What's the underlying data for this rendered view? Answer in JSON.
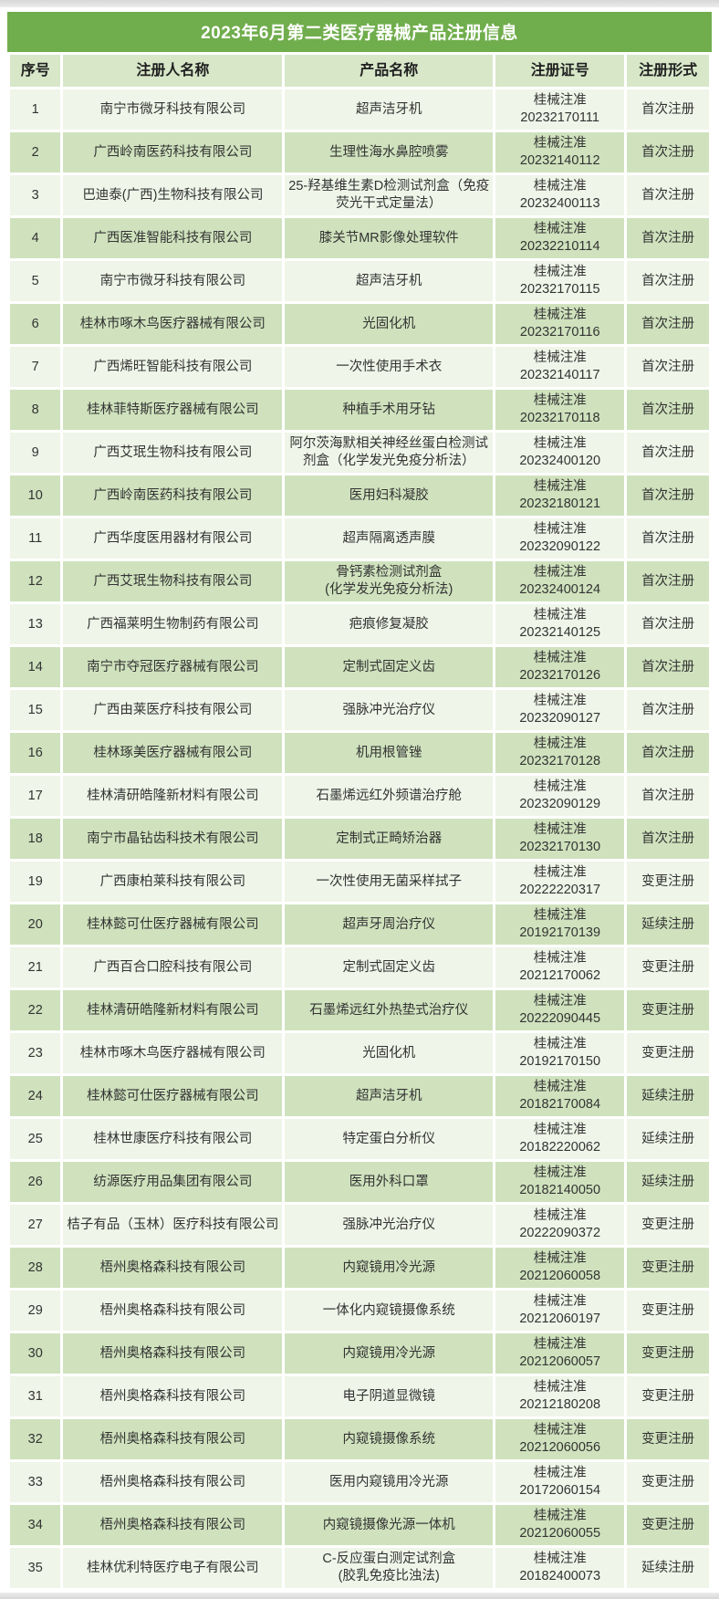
{
  "page": {
    "title": "2023年6月第二类医疗器械产品注册信息"
  },
  "colors": {
    "title_bg": "#70ad4c",
    "header_bg": "#d7e7c8",
    "row_odd_bg": "#eff5e8",
    "row_even_bg": "#cfe2bd",
    "title_text": "#ffffff"
  },
  "table": {
    "headers": [
      "序号",
      "注册人名称",
      "产品名称",
      "注册证号",
      "注册形式"
    ],
    "rows": [
      {
        "no": "1",
        "registrant": "南宁市微牙科技有限公司",
        "product": "超声洁牙机",
        "cert_prefix": "桂械注准",
        "cert_no": "20232170111",
        "form": "首次注册"
      },
      {
        "no": "2",
        "registrant": "广西岭南医药科技有限公司",
        "product": "生理性海水鼻腔喷雾",
        "cert_prefix": "桂械注准",
        "cert_no": "20232140112",
        "form": "首次注册"
      },
      {
        "no": "3",
        "registrant": "巴迪泰(广西)生物科技有限公司",
        "product": "25-羟基维生素D检测试剂盒（免疫荧光干式定量法）",
        "cert_prefix": "桂械注准",
        "cert_no": "20232400113",
        "form": "首次注册"
      },
      {
        "no": "4",
        "registrant": "广西医准智能科技有限公司",
        "product": "膝关节MR影像处理软件",
        "cert_prefix": "桂械注准",
        "cert_no": "20232210114",
        "form": "首次注册"
      },
      {
        "no": "5",
        "registrant": "南宁市微牙科技有限公司",
        "product": "超声洁牙机",
        "cert_prefix": "桂械注准",
        "cert_no": "20232170115",
        "form": "首次注册"
      },
      {
        "no": "6",
        "registrant": "桂林市啄木鸟医疗器械有限公司",
        "product": "光固化机",
        "cert_prefix": "桂械注准",
        "cert_no": "20232170116",
        "form": "首次注册"
      },
      {
        "no": "7",
        "registrant": "广西烯旺智能科技有限公司",
        "product": "一次性使用手术衣",
        "cert_prefix": "桂械注准",
        "cert_no": "20232140117",
        "form": "首次注册"
      },
      {
        "no": "8",
        "registrant": "桂林菲特斯医疗器械有限公司",
        "product": "种植手术用牙钻",
        "cert_prefix": "桂械注准",
        "cert_no": "20232170118",
        "form": "首次注册"
      },
      {
        "no": "9",
        "registrant": "广西艾珉生物科技有限公司",
        "product": "阿尔茨海默相关神经丝蛋白检测试剂盒（化学发光免疫分析法）",
        "cert_prefix": "桂械注准",
        "cert_no": "20232400120",
        "form": "首次注册"
      },
      {
        "no": "10",
        "registrant": "广西岭南医药科技有限公司",
        "product": "医用妇科凝胶",
        "cert_prefix": "桂械注准",
        "cert_no": "20232180121",
        "form": "首次注册"
      },
      {
        "no": "11",
        "registrant": "广西华度医用器材有限公司",
        "product": "超声隔离透声膜",
        "cert_prefix": "桂械注准",
        "cert_no": "20232090122",
        "form": "首次注册"
      },
      {
        "no": "12",
        "registrant": "广西艾珉生物科技有限公司",
        "product": "骨钙素检测试剂盒\n(化学发光免疫分析法)",
        "cert_prefix": "桂械注准",
        "cert_no": "20232400124",
        "form": "首次注册"
      },
      {
        "no": "13",
        "registrant": "广西福莱明生物制药有限公司",
        "product": "疤痕修复凝胶",
        "cert_prefix": "桂械注准",
        "cert_no": "20232140125",
        "form": "首次注册"
      },
      {
        "no": "14",
        "registrant": "南宁市夺冠医疗器械有限公司",
        "product": "定制式固定义齿",
        "cert_prefix": "桂械注准",
        "cert_no": "20232170126",
        "form": "首次注册"
      },
      {
        "no": "15",
        "registrant": "广西由莱医疗科技有限公司",
        "product": "强脉冲光治疗仪",
        "cert_prefix": "桂械注准",
        "cert_no": "20232090127",
        "form": "首次注册"
      },
      {
        "no": "16",
        "registrant": "桂林琢美医疗器械有限公司",
        "product": "机用根管锉",
        "cert_prefix": "桂械注准",
        "cert_no": "20232170128",
        "form": "首次注册"
      },
      {
        "no": "17",
        "registrant": "桂林清研皓隆新材料有限公司",
        "product": "石墨烯远红外频谱治疗舱",
        "cert_prefix": "桂械注准",
        "cert_no": "20232090129",
        "form": "首次注册"
      },
      {
        "no": "18",
        "registrant": "南宁市晶钻齿科技术有限公司",
        "product": "定制式正畸矫治器",
        "cert_prefix": "桂械注准",
        "cert_no": "20232170130",
        "form": "首次注册"
      },
      {
        "no": "19",
        "registrant": "广西康柏莱科技有限公司",
        "product": "一次性使用无菌采样拭子",
        "cert_prefix": "桂械注准",
        "cert_no": "20222220317",
        "form": "变更注册"
      },
      {
        "no": "20",
        "registrant": "桂林懿可仕医疗器械有限公司",
        "product": "超声牙周治疗仪",
        "cert_prefix": "桂械注准",
        "cert_no": "20192170139",
        "form": "延续注册"
      },
      {
        "no": "21",
        "registrant": "广西百合口腔科技有限公司",
        "product": "定制式固定义齿",
        "cert_prefix": "桂械注准",
        "cert_no": "20212170062",
        "form": "变更注册"
      },
      {
        "no": "22",
        "registrant": "桂林清研皓隆新材料有限公司",
        "product": "石墨烯远红外热垫式治疗仪",
        "cert_prefix": "桂械注准",
        "cert_no": "20222090445",
        "form": "变更注册"
      },
      {
        "no": "23",
        "registrant": "桂林市啄木鸟医疗器械有限公司",
        "product": "光固化机",
        "cert_prefix": "桂械注准",
        "cert_no": "20192170150",
        "form": "变更注册"
      },
      {
        "no": "24",
        "registrant": "桂林懿可仕医疗器械有限公司",
        "product": "超声洁牙机",
        "cert_prefix": "桂械注准",
        "cert_no": "20182170084",
        "form": "延续注册"
      },
      {
        "no": "25",
        "registrant": "桂林世康医疗科技有限公司",
        "product": "特定蛋白分析仪",
        "cert_prefix": "桂械注准",
        "cert_no": "20182220062",
        "form": "延续注册"
      },
      {
        "no": "26",
        "registrant": "纺源医疗用品集团有限公司",
        "product": "医用外科口罩",
        "cert_prefix": "桂械注准",
        "cert_no": "20182140050",
        "form": "延续注册"
      },
      {
        "no": "27",
        "registrant": "桔子有品（玉林）医疗科技有限公司",
        "product": "强脉冲光治疗仪",
        "cert_prefix": "桂械注准",
        "cert_no": "20222090372",
        "form": "变更注册"
      },
      {
        "no": "28",
        "registrant": "梧州奥格森科技有限公司",
        "product": "内窥镜用冷光源",
        "cert_prefix": "桂械注准",
        "cert_no": "20212060058",
        "form": "变更注册"
      },
      {
        "no": "29",
        "registrant": "梧州奥格森科技有限公司",
        "product": "一体化内窥镜摄像系统",
        "cert_prefix": "桂械注准",
        "cert_no": "20212060197",
        "form": "变更注册"
      },
      {
        "no": "30",
        "registrant": "梧州奥格森科技有限公司",
        "product": "内窥镜用冷光源",
        "cert_prefix": "桂械注准",
        "cert_no": "20212060057",
        "form": "变更注册"
      },
      {
        "no": "31",
        "registrant": "梧州奥格森科技有限公司",
        "product": "电子阴道显微镜",
        "cert_prefix": "桂械注准",
        "cert_no": "20212180208",
        "form": "变更注册"
      },
      {
        "no": "32",
        "registrant": "梧州奥格森科技有限公司",
        "product": "内窥镜摄像系统",
        "cert_prefix": "桂械注准",
        "cert_no": "20212060056",
        "form": "变更注册"
      },
      {
        "no": "33",
        "registrant": "梧州奥格森科技有限公司",
        "product": "医用内窥镜用冷光源",
        "cert_prefix": "桂械注准",
        "cert_no": "20172060154",
        "form": "变更注册"
      },
      {
        "no": "34",
        "registrant": "梧州奥格森科技有限公司",
        "product": "内窥镜摄像光源一体机",
        "cert_prefix": "桂械注准",
        "cert_no": "20212060055",
        "form": "变更注册"
      },
      {
        "no": "35",
        "registrant": "桂林优利特医疗电子有限公司",
        "product": "C-反应蛋白测定试剂盒\n(胶乳免疫比浊法)",
        "cert_prefix": "桂械注准",
        "cert_no": "20182400073",
        "form": "延续注册"
      }
    ]
  }
}
